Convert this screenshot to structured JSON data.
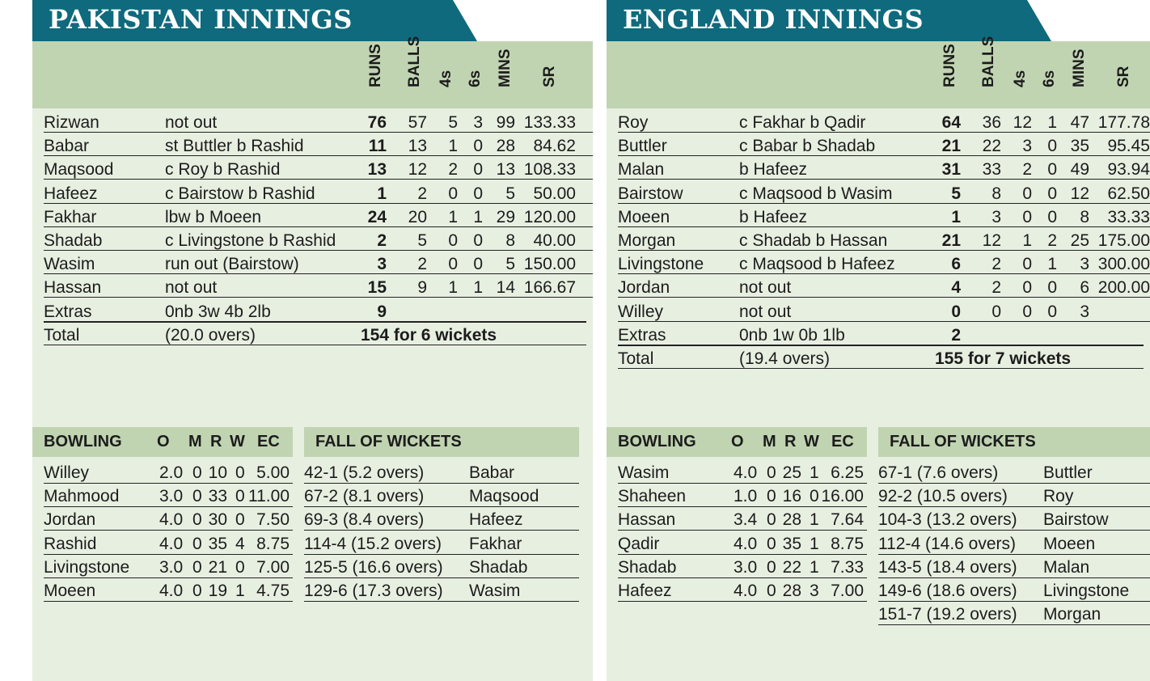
{
  "colors": {
    "banner": "#0e6a7c",
    "band": "#c1d4b2",
    "panel": "#e7efe1"
  },
  "column_headers": [
    "RUNS",
    "BALLS",
    "4s",
    "6s",
    "MINS",
    "SR"
  ],
  "bowling_headers": {
    "title": "BOWLING",
    "o": "O",
    "m": "M",
    "r": "R",
    "w": "W",
    "ec": "EC"
  },
  "fow_title": "FALL OF WICKETS",
  "innings": [
    {
      "title": "PAKISTAN INNINGS",
      "batting": [
        {
          "name": "Rizwan",
          "dismissal": "not out",
          "runs": "76",
          "balls": "57",
          "fours": "5",
          "sixes": "3",
          "mins": "99",
          "sr": "133.33"
        },
        {
          "name": "Babar",
          "dismissal": "st Buttler b Rashid",
          "runs": "11",
          "balls": "13",
          "fours": "1",
          "sixes": "0",
          "mins": "28",
          "sr": "84.62"
        },
        {
          "name": "Maqsood",
          "dismissal": "c Roy b Rashid",
          "runs": "13",
          "balls": "12",
          "fours": "2",
          "sixes": "0",
          "mins": "13",
          "sr": "108.33"
        },
        {
          "name": "Hafeez",
          "dismissal": "c Bairstow b Rashid",
          "runs": "1",
          "balls": "2",
          "fours": "0",
          "sixes": "0",
          "mins": "5",
          "sr": "50.00"
        },
        {
          "name": "Fakhar",
          "dismissal": "lbw b Moeen",
          "runs": "24",
          "balls": "20",
          "fours": "1",
          "sixes": "1",
          "mins": "29",
          "sr": "120.00"
        },
        {
          "name": "Shadab",
          "dismissal": "c Livingstone b Rashid",
          "runs": "2",
          "balls": "5",
          "fours": "0",
          "sixes": "0",
          "mins": "8",
          "sr": "40.00"
        },
        {
          "name": "Wasim",
          "dismissal": "run out (Bairstow)",
          "runs": "3",
          "balls": "2",
          "fours": "0",
          "sixes": "0",
          "mins": "5",
          "sr": "150.00"
        },
        {
          "name": "Hassan",
          "dismissal": "not out",
          "runs": "15",
          "balls": "9",
          "fours": "1",
          "sixes": "1",
          "mins": "14",
          "sr": "166.67"
        }
      ],
      "extras": {
        "label": "Extras",
        "detail": "0nb 3w 4b 2lb",
        "runs": "9"
      },
      "total": {
        "label": "Total",
        "overs": "(20.0 overs)",
        "score": "154 for 6 wickets"
      },
      "bowling": [
        {
          "name": "Willey",
          "o": "2.0",
          "m": "0",
          "r": "10",
          "w": "0",
          "ec": "5.00"
        },
        {
          "name": "Mahmood",
          "o": "3.0",
          "m": "0",
          "r": "33",
          "w": "0",
          "ec": "11.00"
        },
        {
          "name": "Jordan",
          "o": "4.0",
          "m": "0",
          "r": "30",
          "w": "0",
          "ec": "7.50"
        },
        {
          "name": "Rashid",
          "o": "4.0",
          "m": "0",
          "r": "35",
          "w": "4",
          "ec": "8.75"
        },
        {
          "name": "Livingstone",
          "o": "3.0",
          "m": "0",
          "r": "21",
          "w": "0",
          "ec": "7.00"
        },
        {
          "name": "Moeen",
          "o": "4.0",
          "m": "0",
          "r": "19",
          "w": "1",
          "ec": "4.75"
        }
      ],
      "fall_of_wickets": [
        {
          "score": "42-1 (5.2 overs)",
          "batter": "Babar"
        },
        {
          "score": "67-2 (8.1 overs)",
          "batter": "Maqsood"
        },
        {
          "score": "69-3 (8.4 overs)",
          "batter": "Hafeez"
        },
        {
          "score": "114-4 (15.2 overs)",
          "batter": "Fakhar"
        },
        {
          "score": "125-5 (16.6 overs)",
          "batter": "Shadab"
        },
        {
          "score": "129-6 (17.3 overs)",
          "batter": "Wasim"
        }
      ]
    },
    {
      "title": "ENGLAND INNINGS",
      "batting": [
        {
          "name": "Roy",
          "dismissal": "c Fakhar b Qadir",
          "runs": "64",
          "balls": "36",
          "fours": "12",
          "sixes": "1",
          "mins": "47",
          "sr": "177.78"
        },
        {
          "name": "Buttler",
          "dismissal": "c Babar b Shadab",
          "runs": "21",
          "balls": "22",
          "fours": "3",
          "sixes": "0",
          "mins": "35",
          "sr": "95.45"
        },
        {
          "name": "Malan",
          "dismissal": "b Hafeez",
          "runs": "31",
          "balls": "33",
          "fours": "2",
          "sixes": "0",
          "mins": "49",
          "sr": "93.94"
        },
        {
          "name": "Bairstow",
          "dismissal": "c Maqsood b Wasim",
          "runs": "5",
          "balls": "8",
          "fours": "0",
          "sixes": "0",
          "mins": "12",
          "sr": "62.50"
        },
        {
          "name": "Moeen",
          "dismissal": "b Hafeez",
          "runs": "1",
          "balls": "3",
          "fours": "0",
          "sixes": "0",
          "mins": "8",
          "sr": "33.33"
        },
        {
          "name": "Morgan",
          "dismissal": "c Shadab b Hassan",
          "runs": "21",
          "balls": "12",
          "fours": "1",
          "sixes": "2",
          "mins": "25",
          "sr": "175.00"
        },
        {
          "name": "Livingstone",
          "dismissal": "c Maqsood b Hafeez",
          "runs": "6",
          "balls": "2",
          "fours": "0",
          "sixes": "1",
          "mins": "3",
          "sr": "300.00"
        },
        {
          "name": "Jordan",
          "dismissal": "not out",
          "runs": "4",
          "balls": "2",
          "fours": "0",
          "sixes": "0",
          "mins": "6",
          "sr": "200.00"
        },
        {
          "name": "Willey",
          "dismissal": "not out",
          "runs": "0",
          "balls": "0",
          "fours": "0",
          "sixes": "0",
          "mins": "3",
          "sr": ""
        }
      ],
      "extras": {
        "label": "Extras",
        "detail": "0nb 1w 0b 1lb",
        "runs": "2"
      },
      "total": {
        "label": "Total",
        "overs": "(19.4 overs)",
        "score": "155 for 7 wickets"
      },
      "bowling": [
        {
          "name": "Wasim",
          "o": "4.0",
          "m": "0",
          "r": "25",
          "w": "1",
          "ec": "6.25"
        },
        {
          "name": "Shaheen",
          "o": "1.0",
          "m": "0",
          "r": "16",
          "w": "0",
          "ec": "16.00"
        },
        {
          "name": "Hassan",
          "o": "3.4",
          "m": "0",
          "r": "28",
          "w": "1",
          "ec": "7.64"
        },
        {
          "name": "Qadir",
          "o": "4.0",
          "m": "0",
          "r": "35",
          "w": "1",
          "ec": "8.75"
        },
        {
          "name": "Shadab",
          "o": "3.0",
          "m": "0",
          "r": "22",
          "w": "1",
          "ec": "7.33"
        },
        {
          "name": "Hafeez",
          "o": "4.0",
          "m": "0",
          "r": "28",
          "w": "3",
          "ec": "7.00"
        }
      ],
      "fall_of_wickets": [
        {
          "score": "67-1 (7.6 overs)",
          "batter": "Buttler"
        },
        {
          "score": "92-2 (10.5 overs)",
          "batter": "Roy"
        },
        {
          "score": "104-3 (13.2 overs)",
          "batter": "Bairstow"
        },
        {
          "score": "112-4 (14.6 overs)",
          "batter": "Moeen"
        },
        {
          "score": "143-5 (18.4 overs)",
          "batter": "Malan"
        },
        {
          "score": "149-6 (18.6 overs)",
          "batter": "Livingstone"
        },
        {
          "score": "151-7 (19.2 overs)",
          "batter": "Morgan"
        }
      ]
    }
  ]
}
